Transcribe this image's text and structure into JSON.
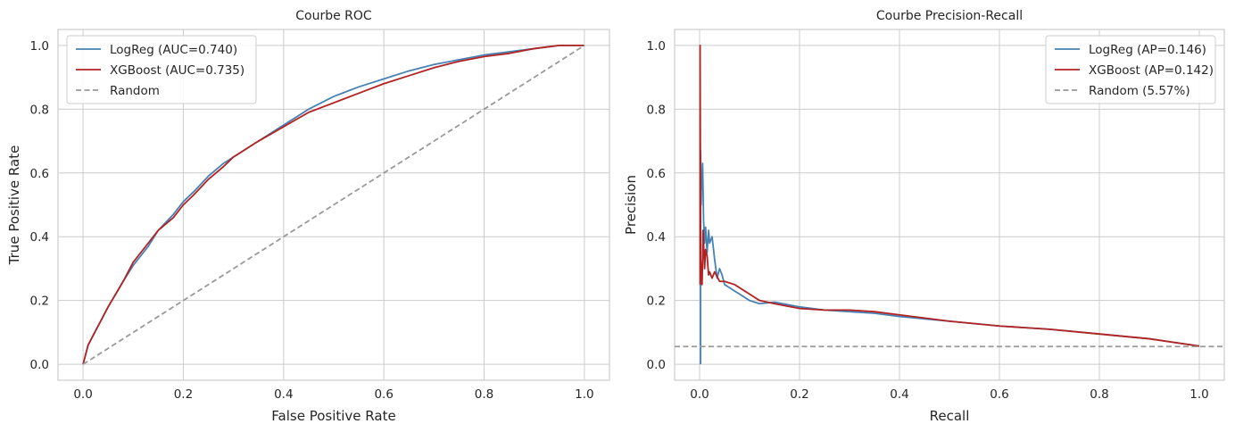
{
  "chart_data": [
    {
      "type": "line",
      "title": "Courbe ROC",
      "xlabel": "False Positive Rate",
      "ylabel": "True Positive Rate",
      "xlim": [
        -0.05,
        1.05
      ],
      "ylim": [
        -0.05,
        1.05
      ],
      "xticks": [
        "0.0",
        "0.2",
        "0.4",
        "0.6",
        "0.8",
        "1.0"
      ],
      "yticks": [
        "0.0",
        "0.2",
        "0.4",
        "0.6",
        "0.8",
        "1.0"
      ],
      "grid": true,
      "legend_position": "top-left",
      "series": [
        {
          "name": "LogReg (AUC=0.740)",
          "color": "#4682b4",
          "dash": "solid",
          "x": [
            0,
            0.005,
            0.01,
            0.02,
            0.03,
            0.05,
            0.08,
            0.1,
            0.13,
            0.15,
            0.18,
            0.2,
            0.22,
            0.25,
            0.28,
            0.3,
            0.35,
            0.4,
            0.45,
            0.5,
            0.55,
            0.6,
            0.65,
            0.7,
            0.75,
            0.8,
            0.85,
            0.9,
            0.95,
            1.0
          ],
          "y": [
            0,
            0.03,
            0.06,
            0.09,
            0.12,
            0.18,
            0.26,
            0.31,
            0.37,
            0.42,
            0.47,
            0.51,
            0.54,
            0.59,
            0.63,
            0.65,
            0.7,
            0.75,
            0.8,
            0.84,
            0.87,
            0.895,
            0.92,
            0.94,
            0.955,
            0.97,
            0.98,
            0.99,
            1.0,
            1.0
          ]
        },
        {
          "name": "XGBoost (AUC=0.735)",
          "color": "#b22222",
          "dash": "solid",
          "x": [
            0,
            0.005,
            0.01,
            0.02,
            0.03,
            0.05,
            0.08,
            0.1,
            0.13,
            0.15,
            0.18,
            0.2,
            0.22,
            0.25,
            0.28,
            0.3,
            0.35,
            0.4,
            0.45,
            0.5,
            0.55,
            0.6,
            0.65,
            0.7,
            0.75,
            0.8,
            0.85,
            0.9,
            0.95,
            1.0
          ],
          "y": [
            0,
            0.03,
            0.06,
            0.09,
            0.12,
            0.18,
            0.26,
            0.32,
            0.38,
            0.42,
            0.46,
            0.5,
            0.53,
            0.58,
            0.62,
            0.65,
            0.7,
            0.745,
            0.79,
            0.82,
            0.85,
            0.88,
            0.905,
            0.93,
            0.95,
            0.965,
            0.975,
            0.99,
            1.0,
            1.0
          ]
        },
        {
          "name": "Random",
          "color": "#999999",
          "dash": "dashed",
          "x": [
            0,
            1
          ],
          "y": [
            0,
            1
          ]
        }
      ]
    },
    {
      "type": "line",
      "title": "Courbe Precision-Recall",
      "xlabel": "Recall",
      "ylabel": "Precision",
      "xlim": [
        -0.05,
        1.05
      ],
      "ylim": [
        -0.05,
        1.05
      ],
      "xticks": [
        "0.0",
        "0.2",
        "0.4",
        "0.6",
        "0.8",
        "1.0"
      ],
      "yticks": [
        "0.0",
        "0.2",
        "0.4",
        "0.6",
        "0.8",
        "1.0"
      ],
      "grid": true,
      "legend_position": "top-right",
      "series": [
        {
          "name": "LogReg (AP=0.146)",
          "color": "#4682b4",
          "dash": "solid",
          "x": [
            0.002,
            0.002,
            0.003,
            0.004,
            0.005,
            0.006,
            0.008,
            0.01,
            0.012,
            0.015,
            0.018,
            0.02,
            0.025,
            0.03,
            0.035,
            0.04,
            0.045,
            0.05,
            0.06,
            0.07,
            0.08,
            0.1,
            0.12,
            0.15,
            0.2,
            0.25,
            0.3,
            0.35,
            0.4,
            0.5,
            0.6,
            0.7,
            0.8,
            0.9,
            1.0
          ],
          "y": [
            0,
            0.67,
            0.5,
            0.6,
            0.55,
            0.63,
            0.45,
            0.38,
            0.43,
            0.35,
            0.42,
            0.38,
            0.4,
            0.33,
            0.27,
            0.3,
            0.28,
            0.25,
            0.24,
            0.23,
            0.22,
            0.2,
            0.19,
            0.195,
            0.18,
            0.17,
            0.165,
            0.16,
            0.15,
            0.135,
            0.12,
            0.11,
            0.095,
            0.08,
            0.057
          ]
        },
        {
          "name": "XGBoost (AP=0.142)",
          "color": "#b22222",
          "dash": "solid",
          "x": [
            0.001,
            0.001,
            0.002,
            0.003,
            0.005,
            0.007,
            0.01,
            0.012,
            0.015,
            0.018,
            0.02,
            0.025,
            0.03,
            0.04,
            0.05,
            0.07,
            0.1,
            0.12,
            0.15,
            0.2,
            0.25,
            0.3,
            0.35,
            0.4,
            0.5,
            0.6,
            0.7,
            0.8,
            0.9,
            1.0
          ],
          "y": [
            0.25,
            1.0,
            0.33,
            0.3,
            0.25,
            0.42,
            0.3,
            0.36,
            0.34,
            0.28,
            0.29,
            0.27,
            0.29,
            0.26,
            0.26,
            0.25,
            0.22,
            0.2,
            0.19,
            0.175,
            0.17,
            0.17,
            0.165,
            0.155,
            0.135,
            0.12,
            0.11,
            0.095,
            0.08,
            0.057
          ]
        },
        {
          "name": "Random (5.57%)",
          "color": "#999999",
          "dash": "dashed",
          "x": [
            -0.05,
            1.05
          ],
          "y": [
            0.0557,
            0.0557
          ]
        }
      ]
    }
  ]
}
